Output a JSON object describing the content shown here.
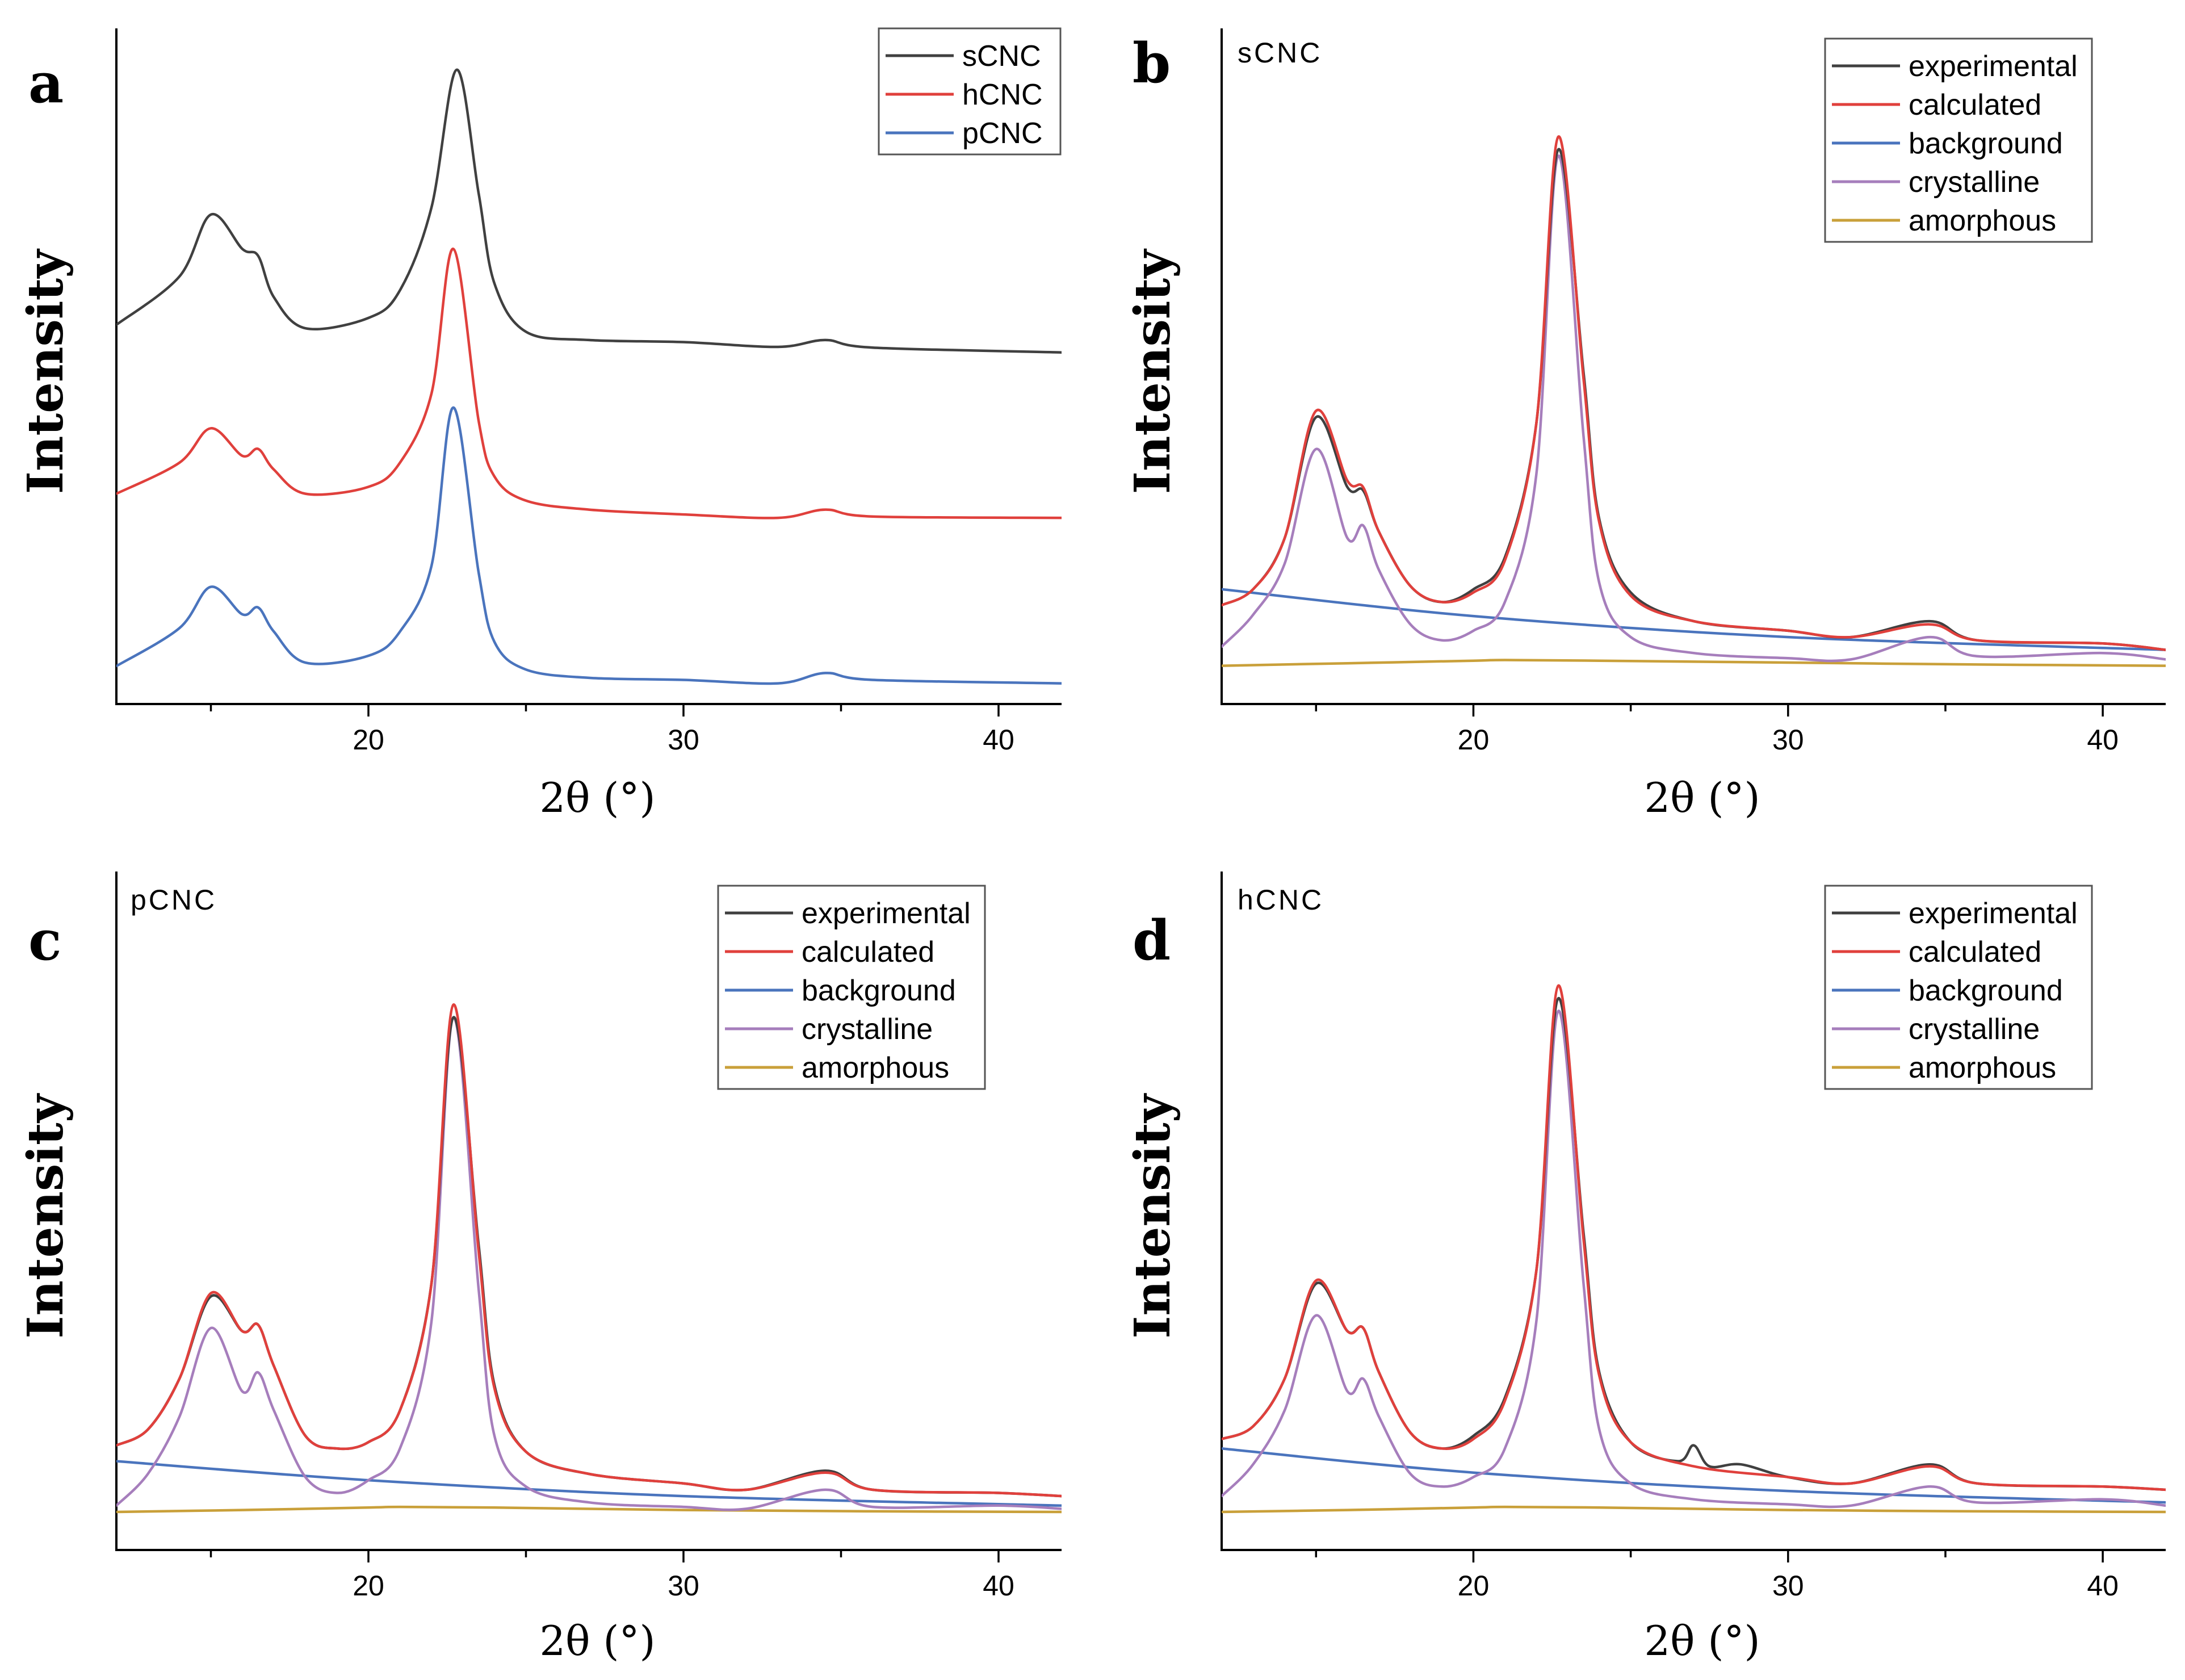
{
  "colors": {
    "sCNC": "#404040",
    "hCNC": "#e0403c",
    "pCNC": "#4a74bd",
    "experimental": "#404040",
    "calculated": "#e0403c",
    "background": "#4a74bd",
    "crystalline": "#a67ebc",
    "amorphous": "#c9a03a"
  },
  "chart_data": [
    {
      "type": "line",
      "panel": "a",
      "title": "",
      "xlabel": "2θ (°)",
      "ylabel": "Intensity",
      "xlim": [
        12,
        42
      ],
      "xticks": [
        20,
        30,
        40
      ],
      "y_ticks_shown": false,
      "legend_position": "top-right",
      "legend": [
        "sCNC",
        "hCNC",
        "pCNC"
      ],
      "series": [
        {
          "name": "sCNC",
          "x": [
            12,
            14,
            15,
            16,
            16.5,
            17,
            18,
            20,
            21,
            22,
            22.8,
            23.5,
            24,
            25,
            27,
            30,
            33,
            34.5,
            36,
            42
          ],
          "values": [
            5.2,
            5.9,
            6.8,
            6.3,
            6.2,
            5.6,
            5.15,
            5.3,
            5.7,
            6.9,
            8.9,
            7.1,
            5.8,
            5.1,
            4.98,
            4.95,
            4.88,
            4.98,
            4.87,
            4.8
          ]
        },
        {
          "name": "hCNC",
          "x": [
            12,
            14,
            15,
            16,
            16.5,
            17,
            18,
            20,
            21,
            22,
            22.7,
            23.5,
            24,
            25,
            27,
            30,
            33,
            34.5,
            36,
            42
          ],
          "values": [
            2.75,
            3.2,
            3.7,
            3.3,
            3.4,
            3.1,
            2.75,
            2.85,
            3.2,
            4.2,
            6.3,
            3.8,
            3.0,
            2.65,
            2.52,
            2.45,
            2.4,
            2.52,
            2.42,
            2.4
          ]
        },
        {
          "name": "pCNC",
          "x": [
            12,
            14,
            15,
            16,
            16.5,
            17,
            18,
            20,
            21,
            22,
            22.7,
            23.5,
            24,
            25,
            27,
            30,
            33,
            34.5,
            36,
            42
          ],
          "values": [
            0.25,
            0.8,
            1.4,
            1.0,
            1.1,
            0.75,
            0.3,
            0.4,
            0.75,
            1.7,
            4.0,
            1.6,
            0.6,
            0.2,
            0.08,
            0.05,
            0.0,
            0.15,
            0.05,
            0.0
          ]
        }
      ]
    },
    {
      "type": "line",
      "panel": "b",
      "sample_label": "sCNC",
      "xlabel": "2θ (°)",
      "ylabel": "Intensity",
      "xlim": [
        12,
        42
      ],
      "xticks": [
        20,
        30,
        40
      ],
      "y_ticks_shown": false,
      "legend_position": "top-right",
      "legend": [
        "experimental",
        "calculated",
        "background",
        "crystalline",
        "amorphous"
      ],
      "series": [
        {
          "name": "experimental",
          "x": [
            12,
            13,
            14,
            15,
            16,
            16.5,
            17,
            18,
            19,
            20,
            21,
            22,
            22.7,
            23.5,
            24,
            25,
            27,
            30,
            32,
            34.5,
            36,
            40,
            42
          ],
          "values": [
            0.95,
            1.2,
            2.0,
            3.9,
            2.8,
            2.75,
            2.1,
            1.25,
            1.0,
            1.2,
            1.7,
            3.8,
            8.1,
            4.6,
            2.3,
            1.15,
            0.7,
            0.55,
            0.45,
            0.7,
            0.4,
            0.35,
            0.25
          ]
        },
        {
          "name": "calculated",
          "x": [
            12,
            13,
            14,
            15,
            16,
            16.5,
            17,
            18,
            19,
            20,
            21,
            22,
            22.7,
            23.5,
            24,
            25,
            27,
            30,
            32,
            34.5,
            36,
            40,
            42
          ],
          "values": [
            0.95,
            1.2,
            2.0,
            4.0,
            2.9,
            2.8,
            2.1,
            1.25,
            1.0,
            1.15,
            1.65,
            3.8,
            8.3,
            4.5,
            2.25,
            1.1,
            0.7,
            0.55,
            0.45,
            0.65,
            0.4,
            0.35,
            0.25
          ]
        },
        {
          "name": "background",
          "x": [
            12,
            20,
            30,
            42
          ],
          "values": [
            1.2,
            0.78,
            0.45,
            0.25
          ]
        },
        {
          "name": "crystalline",
          "x": [
            12,
            13,
            14,
            15,
            16,
            16.5,
            17,
            18,
            19,
            20,
            21,
            22,
            22.7,
            23.5,
            24,
            25,
            27,
            30,
            32,
            34.5,
            36,
            40,
            42
          ],
          "values": [
            0.3,
            0.8,
            1.6,
            3.4,
            2.0,
            2.2,
            1.5,
            0.65,
            0.4,
            0.55,
            1.0,
            3.0,
            8.0,
            3.6,
            1.3,
            0.45,
            0.2,
            0.12,
            0.1,
            0.45,
            0.15,
            0.2,
            0.1
          ]
        },
        {
          "name": "amorphous",
          "x": [
            12,
            16,
            20,
            21,
            24,
            30,
            36,
            42
          ],
          "values": [
            0.0,
            0.04,
            0.08,
            0.09,
            0.08,
            0.05,
            0.02,
            0.0
          ]
        }
      ]
    },
    {
      "type": "line",
      "panel": "c",
      "sample_label": "pCNC",
      "xlabel": "2θ (°)",
      "ylabel": "Intensity",
      "xlim": [
        12,
        42
      ],
      "xticks": [
        20,
        30,
        40
      ],
      "y_ticks_shown": false,
      "legend_position": "top-right",
      "legend": [
        "experimental",
        "calculated",
        "background",
        "crystalline",
        "amorphous"
      ],
      "series": [
        {
          "name": "experimental",
          "x": [
            12,
            13,
            14,
            15,
            16,
            16.5,
            17,
            18,
            19,
            20,
            21,
            22,
            22.7,
            23.5,
            24,
            25,
            27,
            30,
            32,
            34.5,
            36,
            40,
            42
          ],
          "values": [
            1.05,
            1.3,
            2.1,
            3.4,
            2.85,
            2.95,
            2.3,
            1.2,
            1.0,
            1.1,
            1.6,
            3.6,
            7.8,
            4.2,
            2.0,
            0.95,
            0.6,
            0.45,
            0.35,
            0.65,
            0.35,
            0.3,
            0.25
          ]
        },
        {
          "name": "calculated",
          "x": [
            12,
            13,
            14,
            15,
            16,
            16.5,
            17,
            18,
            19,
            20,
            21,
            22,
            22.7,
            23.5,
            24,
            25,
            27,
            30,
            32,
            34.5,
            36,
            40,
            42
          ],
          "values": [
            1.05,
            1.3,
            2.1,
            3.45,
            2.85,
            2.95,
            2.3,
            1.2,
            1.0,
            1.1,
            1.6,
            3.6,
            8.0,
            4.1,
            1.95,
            0.95,
            0.6,
            0.45,
            0.35,
            0.62,
            0.35,
            0.3,
            0.25
          ]
        },
        {
          "name": "background",
          "x": [
            12,
            20,
            30,
            42
          ],
          "values": [
            0.8,
            0.5,
            0.25,
            0.1
          ]
        },
        {
          "name": "crystalline",
          "x": [
            12,
            13,
            14,
            15,
            16,
            16.5,
            17,
            18,
            19,
            20,
            21,
            22,
            22.7,
            23.5,
            24,
            25,
            27,
            30,
            32,
            34.5,
            36,
            40,
            42
          ],
          "values": [
            0.1,
            0.6,
            1.5,
            2.9,
            1.9,
            2.2,
            1.6,
            0.55,
            0.3,
            0.5,
            1.0,
            3.0,
            7.8,
            3.5,
            1.2,
            0.4,
            0.15,
            0.08,
            0.05,
            0.35,
            0.08,
            0.1,
            0.05
          ]
        },
        {
          "name": "amorphous",
          "x": [
            12,
            16,
            20,
            21,
            24,
            30,
            36,
            42
          ],
          "values": [
            0.0,
            0.03,
            0.07,
            0.08,
            0.07,
            0.03,
            0.01,
            0.0
          ]
        }
      ]
    },
    {
      "type": "line",
      "panel": "d",
      "sample_label": "hCNC",
      "xlabel": "2θ (°)",
      "ylabel": "Intensity",
      "xlim": [
        12,
        42
      ],
      "xticks": [
        20,
        30,
        40
      ],
      "y_ticks_shown": false,
      "legend_position": "top-right",
      "legend": [
        "experimental",
        "calculated",
        "background",
        "crystalline",
        "amorphous"
      ],
      "series": [
        {
          "name": "experimental",
          "x": [
            12,
            13,
            14,
            15,
            16,
            16.5,
            17,
            18,
            19,
            20,
            21,
            22,
            22.7,
            23.5,
            24,
            25,
            26.5,
            27,
            27.5,
            28.5,
            30,
            32,
            34.5,
            36,
            40,
            42
          ],
          "values": [
            1.15,
            1.35,
            2.1,
            3.6,
            2.85,
            2.9,
            2.2,
            1.25,
            1.0,
            1.2,
            1.8,
            3.8,
            8.1,
            4.4,
            2.2,
            1.1,
            0.8,
            1.05,
            0.72,
            0.75,
            0.55,
            0.45,
            0.75,
            0.45,
            0.4,
            0.35
          ]
        },
        {
          "name": "calculated",
          "x": [
            12,
            13,
            14,
            15,
            16,
            16.5,
            17,
            18,
            19,
            20,
            21,
            22,
            22.7,
            23.5,
            24,
            25,
            27,
            30,
            32,
            34.5,
            36,
            40,
            42
          ],
          "values": [
            1.15,
            1.35,
            2.1,
            3.65,
            2.85,
            2.9,
            2.2,
            1.25,
            1.0,
            1.15,
            1.75,
            3.8,
            8.3,
            4.3,
            2.15,
            1.1,
            0.72,
            0.55,
            0.45,
            0.72,
            0.45,
            0.4,
            0.35
          ]
        },
        {
          "name": "background",
          "x": [
            12,
            20,
            30,
            42
          ],
          "values": [
            1.0,
            0.62,
            0.33,
            0.15
          ]
        },
        {
          "name": "crystalline",
          "x": [
            12,
            13,
            14,
            15,
            16,
            16.5,
            17,
            18,
            19,
            20,
            21,
            22,
            22.7,
            23.5,
            24,
            25,
            27,
            30,
            32,
            34.5,
            36,
            40,
            42
          ],
          "values": [
            0.25,
            0.75,
            1.6,
            3.1,
            1.9,
            2.1,
            1.5,
            0.6,
            0.4,
            0.55,
            1.0,
            3.0,
            7.9,
            3.6,
            1.3,
            0.45,
            0.2,
            0.12,
            0.1,
            0.4,
            0.15,
            0.2,
            0.1
          ]
        },
        {
          "name": "amorphous",
          "x": [
            12,
            16,
            20,
            21,
            24,
            30,
            36,
            42
          ],
          "values": [
            0.0,
            0.03,
            0.07,
            0.08,
            0.07,
            0.03,
            0.01,
            0.0
          ]
        }
      ]
    }
  ]
}
